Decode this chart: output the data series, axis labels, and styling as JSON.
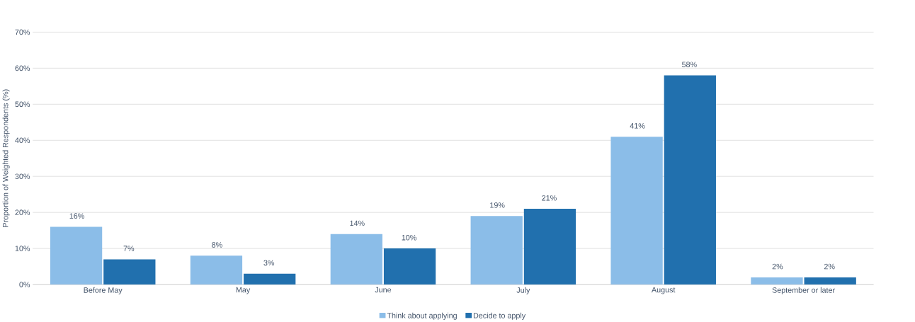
{
  "chart_data": {
    "type": "bar",
    "ylabel": "Proportion of Weighted Respondents (%)",
    "categories": [
      "Before May",
      "May",
      "June",
      "July",
      "August",
      "September or later"
    ],
    "series": [
      {
        "name": "Think about applying",
        "color": "#8bbde8",
        "values": [
          16,
          8,
          14,
          19,
          41,
          2
        ],
        "value_labels": [
          "16%",
          "8%",
          "14%",
          "19%",
          "41%",
          "2%"
        ]
      },
      {
        "name": "Decide to apply",
        "color": "#2170ae",
        "values": [
          7,
          3,
          10,
          21,
          58,
          2
        ],
        "value_labels": [
          "7%",
          "3%",
          "10%",
          "21%",
          "58%",
          "2%"
        ]
      }
    ],
    "ylim": [
      0,
      70
    ],
    "yticks": [
      {
        "value": 0,
        "label": "0%"
      },
      {
        "value": 10,
        "label": "10%"
      },
      {
        "value": 20,
        "label": "20%"
      },
      {
        "value": 30,
        "label": "30%"
      },
      {
        "value": 40,
        "label": "40%"
      },
      {
        "value": 50,
        "label": "50%"
      },
      {
        "value": 60,
        "label": "60%"
      },
      {
        "value": 70,
        "label": "70%"
      }
    ],
    "grid": "y",
    "legend": "bottom"
  }
}
